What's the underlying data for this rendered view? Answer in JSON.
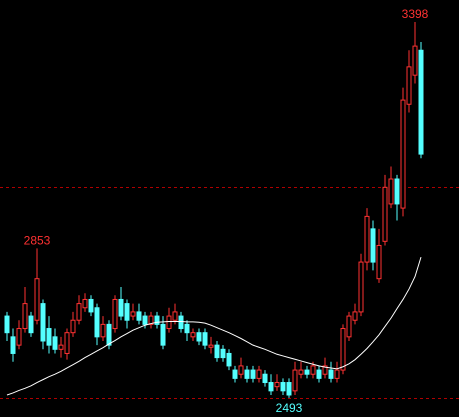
{
  "chart_data": {
    "type": "candlestick",
    "up_color": "#ff3232",
    "down_color": "#54ffff",
    "ylim": [
      2447,
      3451
    ],
    "hlines": [
      3000,
      2493
    ],
    "hline_color": "#b00000",
    "open": [
      2690,
      2640,
      2620,
      2660,
      2690,
      2680,
      2720,
      2660,
      2640,
      2610,
      2600,
      2650,
      2680,
      2710,
      2730,
      2710,
      2640,
      2670,
      2660,
      2730,
      2720,
      2690,
      2700,
      2690,
      2670,
      2690,
      2670,
      2660,
      2680,
      2690,
      2670,
      2640,
      2650,
      2650,
      2615,
      2620,
      2610,
      2600,
      2560,
      2550,
      2560,
      2560,
      2540,
      2550,
      2530,
      2520,
      2530,
      2530,
      2510,
      2550,
      2560,
      2550,
      2560,
      2550,
      2560,
      2540,
      2560,
      2640,
      2680,
      2700,
      2820,
      2900,
      2780,
      2870,
      2960,
      3020,
      2950,
      3200,
      3270,
      3330
    ],
    "high": [
      2700,
      2660,
      2680,
      2760,
      2700,
      2853,
      2730,
      2690,
      2660,
      2640,
      2660,
      2700,
      2740,
      2745,
      2740,
      2720,
      2690,
      2680,
      2740,
      2760,
      2730,
      2720,
      2720,
      2700,
      2700,
      2700,
      2690,
      2710,
      2720,
      2700,
      2680,
      2660,
      2660,
      2660,
      2640,
      2630,
      2620,
      2610,
      2570,
      2590,
      2570,
      2570,
      2570,
      2560,
      2550,
      2550,
      2540,
      2540,
      2580,
      2580,
      2570,
      2580,
      2570,
      2590,
      2580,
      2580,
      2670,
      2700,
      2720,
      2840,
      2950,
      2920,
      2900,
      3030,
      3050,
      3030,
      3240,
      3330,
      3398,
      3350
    ],
    "low": [
      2630,
      2580,
      2610,
      2650,
      2640,
      2670,
      2610,
      2600,
      2600,
      2590,
      2585,
      2640,
      2670,
      2700,
      2690,
      2620,
      2630,
      2610,
      2650,
      2680,
      2660,
      2680,
      2670,
      2660,
      2660,
      2660,
      2610,
      2650,
      2670,
      2650,
      2630,
      2630,
      2620,
      2610,
      2600,
      2580,
      2580,
      2560,
      2530,
      2540,
      2530,
      2530,
      2530,
      2520,
      2500,
      2510,
      2500,
      2493,
      2500,
      2540,
      2540,
      2540,
      2530,
      2540,
      2530,
      2530,
      2550,
      2630,
      2670,
      2690,
      2800,
      2800,
      2770,
      2860,
      2950,
      2920,
      2930,
      3180,
      3250,
      3070
    ],
    "close": [
      2650,
      2600,
      2660,
      2720,
      2650,
      2780,
      2630,
      2620,
      2610,
      2620,
      2650,
      2680,
      2720,
      2730,
      2700,
      2640,
      2670,
      2620,
      2730,
      2690,
      2680,
      2700,
      2680,
      2670,
      2690,
      2670,
      2620,
      2690,
      2700,
      2660,
      2650,
      2650,
      2630,
      2620,
      2620,
      2590,
      2590,
      2570,
      2540,
      2570,
      2540,
      2540,
      2560,
      2530,
      2510,
      2530,
      2510,
      2500,
      2560,
      2560,
      2550,
      2570,
      2540,
      2570,
      2540,
      2560,
      2660,
      2690,
      2700,
      2820,
      2930,
      2820,
      2860,
      3000,
      3020,
      2960,
      3210,
      3290,
      3340,
      3080
    ],
    "ma": {
      "color": "#ffffff",
      "values": [
        2500,
        2505,
        2511,
        2516,
        2522,
        2530,
        2537,
        2544,
        2550,
        2557,
        2565,
        2573,
        2581,
        2590,
        2598,
        2606,
        2614,
        2623,
        2631,
        2640,
        2648,
        2656,
        2662,
        2668,
        2672,
        2675,
        2676,
        2677,
        2677,
        2677,
        2676,
        2676,
        2675,
        2673,
        2668,
        2662,
        2656,
        2650,
        2643,
        2636,
        2628,
        2620,
        2615,
        2610,
        2604,
        2598,
        2594,
        2590,
        2586,
        2582,
        2578,
        2574,
        2570,
        2567,
        2565,
        2563,
        2568,
        2575,
        2585,
        2598,
        2612,
        2628,
        2645,
        2665,
        2685,
        2708,
        2730,
        2755,
        2785,
        2832
      ]
    }
  }
}
